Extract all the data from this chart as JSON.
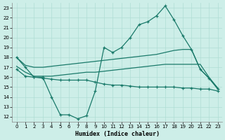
{
  "bg_color": "#cdeee8",
  "grid_color": "#b0ddd4",
  "line_color": "#1a7a6a",
  "xlabel": "Humidex (Indice chaleur)",
  "xlim": [
    -0.5,
    23.5
  ],
  "ylim": [
    11.5,
    23.5
  ],
  "yticks": [
    12,
    13,
    14,
    15,
    16,
    17,
    18,
    19,
    20,
    21,
    22,
    23
  ],
  "xticks": [
    0,
    1,
    2,
    3,
    4,
    5,
    6,
    7,
    8,
    9,
    10,
    11,
    12,
    13,
    14,
    15,
    16,
    17,
    18,
    19,
    20,
    21,
    22,
    23
  ],
  "curve1_x": [
    0,
    1,
    2,
    3,
    4,
    5,
    6,
    7,
    8,
    9,
    10,
    11,
    12,
    13,
    14,
    15,
    16,
    17,
    18,
    19,
    20,
    21,
    22,
    23
  ],
  "curve1_y": [
    18.0,
    17.0,
    16.0,
    16.0,
    14.0,
    12.2,
    12.2,
    11.8,
    12.1,
    14.6,
    19.0,
    18.5,
    19.0,
    20.0,
    21.3,
    21.6,
    22.2,
    23.2,
    21.8,
    20.2,
    18.8,
    16.8,
    15.9,
    14.8
  ],
  "curve2_x": [
    0,
    1,
    2,
    3,
    4,
    5,
    6,
    7,
    8,
    9,
    10,
    11,
    12,
    13,
    14,
    15,
    16,
    17,
    18,
    19,
    20,
    21,
    22,
    23
  ],
  "curve2_y": [
    18.0,
    17.2,
    17.0,
    17.0,
    17.1,
    17.2,
    17.3,
    17.4,
    17.5,
    17.6,
    17.7,
    17.8,
    17.9,
    18.0,
    18.1,
    18.2,
    18.3,
    18.5,
    18.7,
    18.8,
    18.8,
    16.8,
    15.9,
    14.9
  ],
  "curve3_x": [
    0,
    1,
    2,
    3,
    4,
    5,
    6,
    7,
    8,
    9,
    10,
    11,
    12,
    13,
    14,
    15,
    16,
    17,
    18,
    19,
    20,
    21,
    22,
    23
  ],
  "curve3_y": [
    17.1,
    16.5,
    16.1,
    16.1,
    16.1,
    16.2,
    16.3,
    16.4,
    16.5,
    16.5,
    16.6,
    16.7,
    16.8,
    16.9,
    17.0,
    17.1,
    17.2,
    17.3,
    17.3,
    17.3,
    17.3,
    17.3,
    16.0,
    14.9
  ],
  "curve4_x": [
    0,
    1,
    2,
    3,
    4,
    5,
    6,
    7,
    8,
    9,
    10,
    11,
    12,
    13,
    14,
    15,
    16,
    17,
    18,
    19,
    20,
    21,
    22,
    23
  ],
  "curve4_y": [
    16.8,
    16.1,
    16.0,
    15.9,
    15.8,
    15.7,
    15.7,
    15.7,
    15.7,
    15.5,
    15.3,
    15.2,
    15.2,
    15.1,
    15.0,
    15.0,
    15.0,
    15.0,
    15.0,
    14.9,
    14.9,
    14.8,
    14.8,
    14.6
  ]
}
